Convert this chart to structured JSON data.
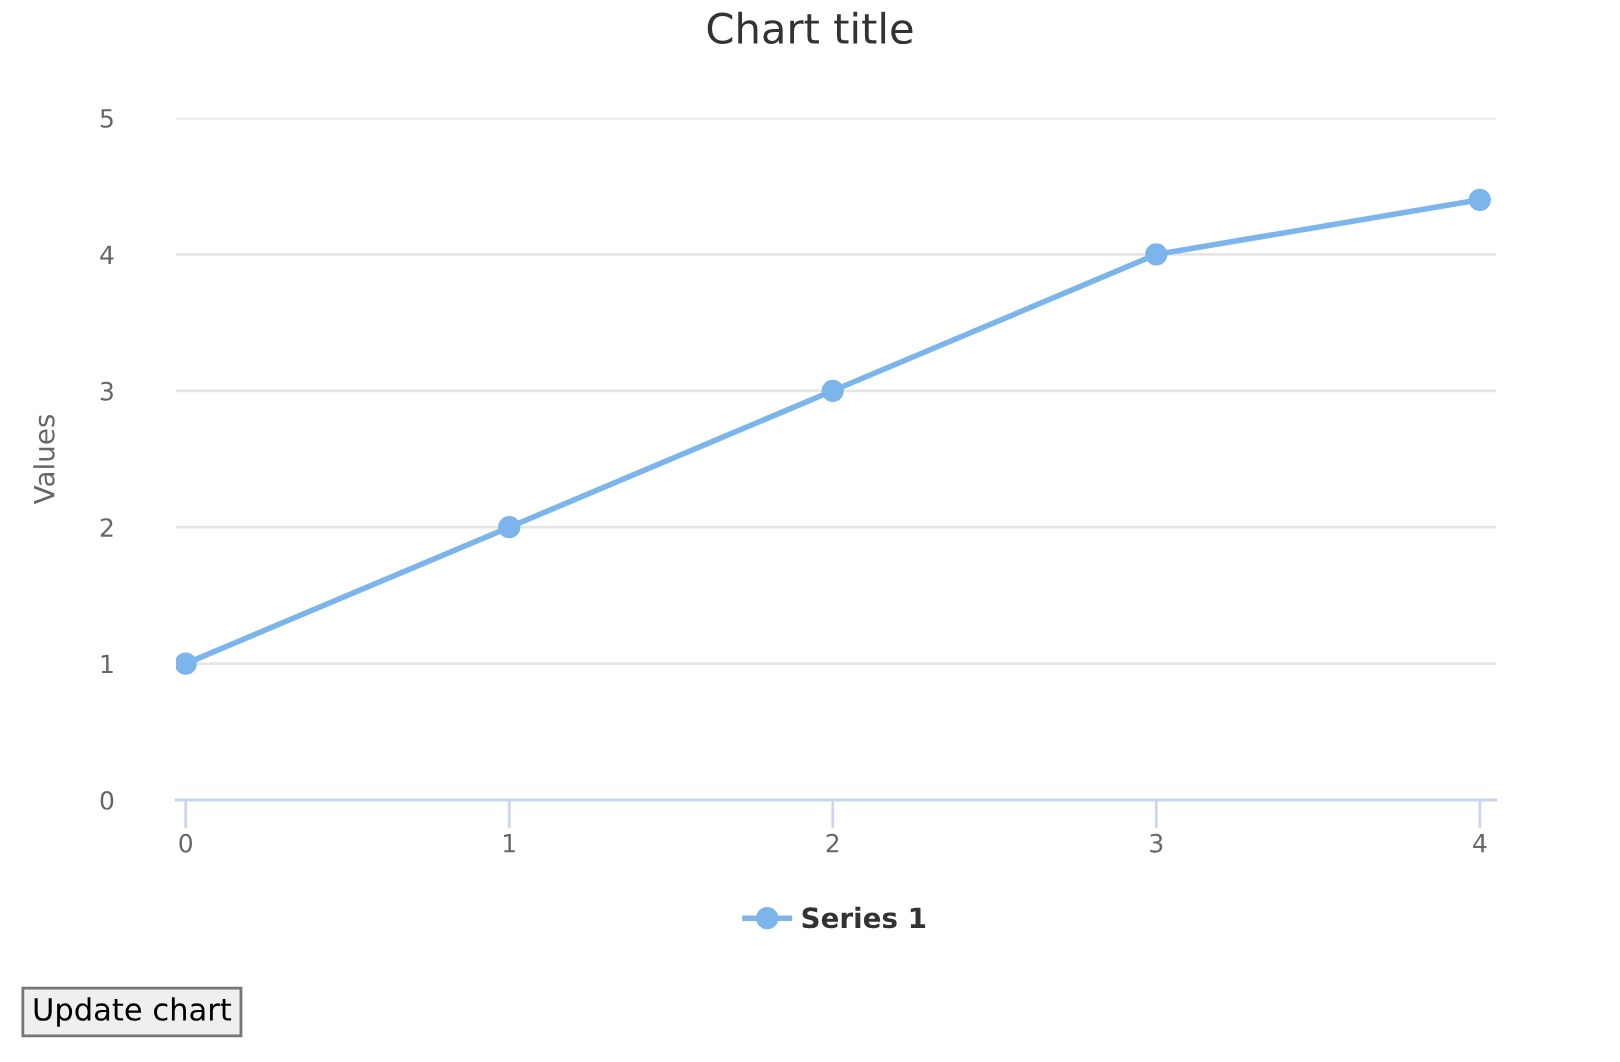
{
  "chart_data": {
    "type": "line",
    "title": "Chart title",
    "ylabel": "Values",
    "x": [
      0,
      1,
      2,
      3,
      4
    ],
    "series": [
      {
        "name": "Series 1",
        "color": "#7cb5ec",
        "values": [
          1,
          2,
          3,
          4,
          4.4
        ]
      }
    ],
    "xlim": [
      -0.03,
      4.05
    ],
    "xticks": [
      0,
      1,
      2,
      3,
      4
    ],
    "ylim": [
      0,
      5
    ],
    "yticks": [
      0,
      1,
      2,
      3,
      4,
      5
    ],
    "grid": "y",
    "legend": "bottom",
    "marker": "circle",
    "line_style": "solid",
    "annotations": [
      "Update chart"
    ]
  }
}
